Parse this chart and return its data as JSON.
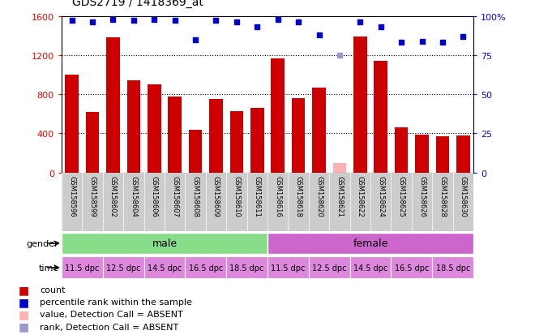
{
  "title": "GDS2719 / 1418369_at",
  "samples": [
    "GSM158596",
    "GSM158599",
    "GSM158602",
    "GSM158604",
    "GSM158606",
    "GSM158607",
    "GSM158608",
    "GSM158609",
    "GSM158610",
    "GSM158611",
    "GSM158616",
    "GSM158618",
    "GSM158620",
    "GSM158621",
    "GSM158622",
    "GSM158624",
    "GSM158625",
    "GSM158626",
    "GSM158628",
    "GSM158630"
  ],
  "counts": [
    1000,
    620,
    1380,
    940,
    900,
    780,
    440,
    750,
    630,
    660,
    1170,
    760,
    870,
    100,
    1390,
    1140,
    460,
    390,
    370,
    380
  ],
  "absent_count": [
    null,
    null,
    null,
    null,
    null,
    null,
    null,
    null,
    null,
    null,
    null,
    null,
    null,
    100,
    null,
    null,
    null,
    null,
    null,
    null
  ],
  "percentile_ranks": [
    97,
    96,
    98,
    97,
    98,
    97,
    85,
    97,
    96,
    93,
    98,
    96,
    88,
    null,
    96,
    93,
    83,
    84,
    83,
    87
  ],
  "absent_rank": [
    null,
    null,
    null,
    null,
    null,
    null,
    null,
    null,
    null,
    null,
    null,
    null,
    null,
    75,
    null,
    null,
    null,
    null,
    null,
    null
  ],
  "gender": [
    "male",
    "male",
    "male",
    "male",
    "male",
    "male",
    "male",
    "male",
    "male",
    "male",
    "female",
    "female",
    "female",
    "female",
    "female",
    "female",
    "female",
    "female",
    "female",
    "female"
  ],
  "time": [
    "11.5 dpc",
    "12.5 dpc",
    "14.5 dpc",
    "16.5 dpc",
    "18.5 dpc",
    "11.5 dpc",
    "12.5 dpc",
    "14.5 dpc",
    "16.5 dpc",
    "18.5 dpc",
    "11.5 dpc",
    "12.5 dpc",
    "14.5 dpc",
    "16.5 dpc",
    "18.5 dpc",
    "11.5 dpc",
    "12.5 dpc",
    "14.5 dpc",
    "16.5 dpc",
    "18.5 dpc"
  ],
  "bar_color": "#cc0000",
  "absent_bar_color": "#ffb0b0",
  "dot_color": "#0000cc",
  "absent_dot_color": "#9999cc",
  "gender_colors": {
    "male": "#88dd88",
    "female": "#cc66cc"
  },
  "time_color": "#dd88dd",
  "label_bg": "#cccccc",
  "ylim_left": [
    0,
    1600
  ],
  "ylim_right": [
    0,
    100
  ],
  "yticks_left": [
    0,
    400,
    800,
    1200,
    1600
  ],
  "yticks_right": [
    0,
    25,
    50,
    75,
    100
  ],
  "background_color": "#ffffff"
}
